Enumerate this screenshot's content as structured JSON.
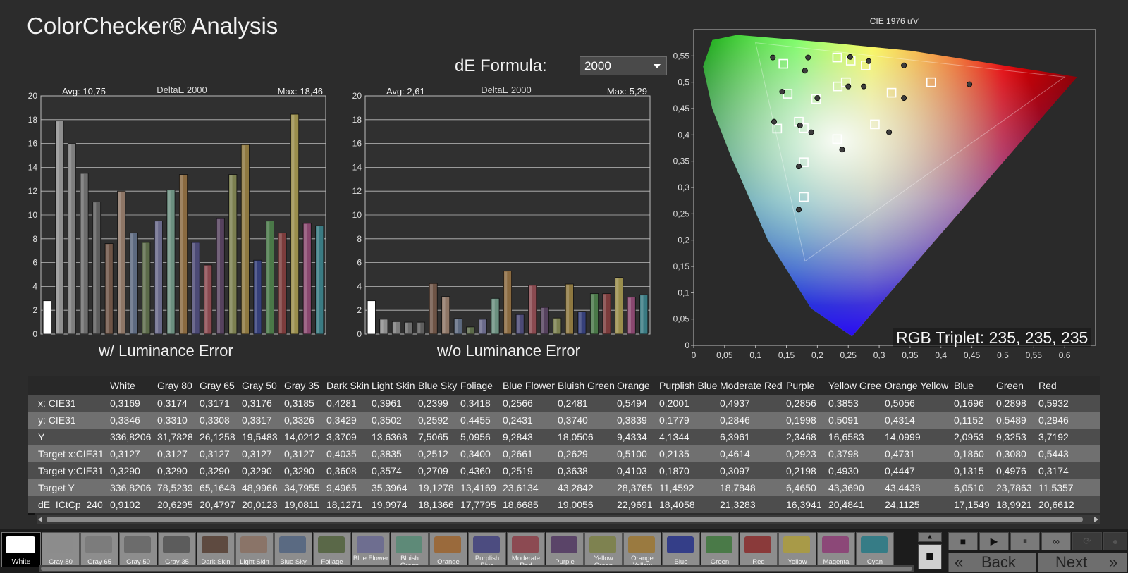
{
  "page": {
    "title": "ColorChecker® Analysis",
    "de_formula_label": "dE Formula:",
    "de_formula_value": "2000",
    "rgb_triplet": "RGB Triplet: 235, 235, 235"
  },
  "chart_data": [
    {
      "type": "bar",
      "caption": "w/ Luminance Error",
      "series_title": "DeltaE 2000",
      "avg_label": "Avg: 10,75",
      "max_label": "Max: 18,46",
      "ylim": [
        0,
        20
      ],
      "yticks": [
        "0",
        "2",
        "4",
        "6",
        "8",
        "10",
        "12",
        "14",
        "16",
        "18",
        "20"
      ],
      "categories": [
        "White",
        "Gray 80",
        "Gray 65",
        "Gray 50",
        "Gray 35",
        "Dark Skin",
        "Light Skin",
        "Blue Sky",
        "Foliage",
        "Blue Flower",
        "Bluish Green",
        "Orange",
        "Purplish Blue",
        "Moderate Red",
        "Purple",
        "Yellow Green",
        "Orange Yellow",
        "Blue",
        "Green",
        "Red",
        "Yellow",
        "Magenta",
        "Cyan"
      ],
      "values": [
        2.8,
        17.9,
        16.0,
        13.5,
        11.1,
        7.6,
        12.0,
        8.5,
        7.7,
        9.5,
        12.1,
        13.4,
        7.7,
        5.8,
        9.7,
        13.4,
        15.9,
        6.2,
        9.5,
        8.5,
        18.46,
        9.3,
        9.1
      ],
      "colors": [
        "#ffffff",
        "#8f8f8f",
        "#7e7e7e",
        "#6e6e6e",
        "#5e5e5e",
        "#6e5446",
        "#8e7666",
        "#5d6a80",
        "#5c6b4a",
        "#6a6a8a",
        "#6c9080",
        "#8a6a40",
        "#4c4a76",
        "#8a4a50",
        "#56425e",
        "#7c8050",
        "#8e7840",
        "#36407a",
        "#4a7848",
        "#7c3c3c",
        "#9a8e4c",
        "#8a4870",
        "#3a7a82"
      ]
    },
    {
      "type": "bar",
      "caption": "w/o Luminance Error",
      "series_title": "DeltaE 2000",
      "avg_label": "Avg: 2,61",
      "max_label": "Max: 5,29",
      "ylim": [
        0,
        20
      ],
      "yticks": [
        "0",
        "2",
        "4",
        "6",
        "8",
        "10",
        "12",
        "14",
        "16",
        "18",
        "20"
      ],
      "categories": [
        "White",
        "Gray 80",
        "Gray 65",
        "Gray 50",
        "Gray 35",
        "Dark Skin",
        "Light Skin",
        "Blue Sky",
        "Foliage",
        "Blue Flower",
        "Bluish Green",
        "Orange",
        "Purplish Blue",
        "Moderate Red",
        "Purple",
        "Yellow Green",
        "Orange Yellow",
        "Blue",
        "Green",
        "Red",
        "Yellow",
        "Magenta",
        "Cyan"
      ],
      "values": [
        2.8,
        1.25,
        1.05,
        1.0,
        1.0,
        4.25,
        3.15,
        1.3,
        0.6,
        1.25,
        3.0,
        5.29,
        1.65,
        4.1,
        2.25,
        1.35,
        4.2,
        1.9,
        3.4,
        3.4,
        4.75,
        3.1,
        3.3
      ],
      "colors": [
        "#ffffff",
        "#8f8f8f",
        "#7e7e7e",
        "#6e6e6e",
        "#5e5e5e",
        "#6e5446",
        "#8e7666",
        "#5d6a80",
        "#5c6b4a",
        "#6a6a8a",
        "#6c9080",
        "#8a6a40",
        "#4c4a76",
        "#8a4a50",
        "#56425e",
        "#7c8050",
        "#8e7840",
        "#36407a",
        "#4a7848",
        "#7c3c3c",
        "#9a8e4c",
        "#8a4870",
        "#3a7a82"
      ]
    },
    {
      "type": "scatter",
      "title": "CIE 1976 u'v'",
      "xlim": [
        0,
        0.65
      ],
      "ylim": [
        0,
        0.6
      ],
      "xticks": [
        "0",
        "0,05",
        "0,1",
        "0,15",
        "0,2",
        "0,25",
        "0,3",
        "0,35",
        "0,4",
        "0,45",
        "0,5",
        "0,55",
        "0,6"
      ],
      "yticks": [
        "0",
        "0,05",
        "0,1",
        "0,15",
        "0,2",
        "0,25",
        "0,3",
        "0,35",
        "0,4",
        "0,45",
        "0,5",
        "0,55"
      ],
      "targets": [
        [
          0.198,
          0.468
        ],
        [
          0.145,
          0.535
        ],
        [
          0.17,
          0.425
        ],
        [
          0.178,
          0.413
        ],
        [
          0.135,
          0.412
        ],
        [
          0.152,
          0.478
        ],
        [
          0.178,
          0.348
        ],
        [
          0.178,
          0.282
        ],
        [
          0.232,
          0.547
        ],
        [
          0.254,
          0.541
        ],
        [
          0.278,
          0.532
        ],
        [
          0.246,
          0.5
        ],
        [
          0.233,
          0.492
        ],
        [
          0.293,
          0.42
        ],
        [
          0.32,
          0.48
        ],
        [
          0.384,
          0.5
        ],
        [
          0.232,
          0.392
        ]
      ],
      "measured": [
        [
          0.128,
          0.547
        ],
        [
          0.185,
          0.547
        ],
        [
          0.18,
          0.522
        ],
        [
          0.143,
          0.482
        ],
        [
          0.13,
          0.425
        ],
        [
          0.172,
          0.418
        ],
        [
          0.19,
          0.405
        ],
        [
          0.24,
          0.372
        ],
        [
          0.17,
          0.34
        ],
        [
          0.17,
          0.258
        ],
        [
          0.253,
          0.548
        ],
        [
          0.283,
          0.54
        ],
        [
          0.34,
          0.532
        ],
        [
          0.25,
          0.492
        ],
        [
          0.275,
          0.492
        ],
        [
          0.34,
          0.47
        ],
        [
          0.316,
          0.405
        ],
        [
          0.446,
          0.496
        ],
        [
          0.2,
          0.47
        ]
      ]
    }
  ],
  "table": {
    "columns": [
      "",
      "White",
      "Gray 80",
      "Gray 65",
      "Gray 50",
      "Gray 35",
      "Dark Skin",
      "Light Skin",
      "Blue Sky",
      "Foliage",
      "Blue Flower",
      "Bluish Green",
      "Orange",
      "Purplish Blue",
      "Moderate Red",
      "Purple",
      "Yellow Green",
      "Orange Yellow",
      "Blue",
      "Green",
      "Red"
    ],
    "rows": [
      [
        "x: CIE31",
        "0,3169",
        "0,3174",
        "0,3171",
        "0,3176",
        "0,3185",
        "0,4281",
        "0,3961",
        "0,2399",
        "0,3418",
        "0,2566",
        "0,2481",
        "0,5494",
        "0,2001",
        "0,4937",
        "0,2856",
        "0,3853",
        "0,5056",
        "0,1696",
        "0,2898",
        "0,5932"
      ],
      [
        "y: CIE31",
        "0,3346",
        "0,3310",
        "0,3308",
        "0,3317",
        "0,3326",
        "0,3429",
        "0,3502",
        "0,2592",
        "0,4455",
        "0,2431",
        "0,3740",
        "0,3839",
        "0,1779",
        "0,2846",
        "0,1998",
        "0,5091",
        "0,4314",
        "0,1152",
        "0,5489",
        "0,2946"
      ],
      [
        "Y",
        "336,8206",
        "31,7828",
        "26,1258",
        "19,5483",
        "14,0212",
        "3,3709",
        "13,6368",
        "7,5065",
        "5,0956",
        "9,2843",
        "18,0506",
        "9,4334",
        "4,1344",
        "6,3961",
        "2,3468",
        "16,6583",
        "14,0999",
        "2,0953",
        "9,3253",
        "3,7192"
      ],
      [
        "Target x:CIE31",
        "0,3127",
        "0,3127",
        "0,3127",
        "0,3127",
        "0,3127",
        "0,4035",
        "0,3835",
        "0,2512",
        "0,3400",
        "0,2661",
        "0,2629",
        "0,5100",
        "0,2135",
        "0,4614",
        "0,2923",
        "0,3798",
        "0,4731",
        "0,1860",
        "0,3080",
        "0,5443"
      ],
      [
        "Target y:CIE31",
        "0,3290",
        "0,3290",
        "0,3290",
        "0,3290",
        "0,3290",
        "0,3608",
        "0,3574",
        "0,2709",
        "0,4360",
        "0,2519",
        "0,3638",
        "0,4103",
        "0,1870",
        "0,3097",
        "0,2198",
        "0,4930",
        "0,4447",
        "0,1315",
        "0,4976",
        "0,3174"
      ],
      [
        "Target Y",
        "336,8206",
        "78,5239",
        "65,1648",
        "48,9966",
        "34,7955",
        "9,4965",
        "35,3964",
        "19,1278",
        "13,4169",
        "23,6134",
        "43,2842",
        "28,3765",
        "11,4592",
        "18,7848",
        "6,4650",
        "43,3690",
        "43,4438",
        "6,0510",
        "23,7863",
        "11,5357"
      ],
      [
        "dE_ICtCp_240",
        "0,9102",
        "20,6295",
        "20,4797",
        "20,0123",
        "19,0811",
        "18,1271",
        "19,9974",
        "18,1366",
        "17,7795",
        "18,6685",
        "19,0056",
        "22,9691",
        "18,4058",
        "21,3283",
        "16,3941",
        "20,4841",
        "24,1125",
        "17,1549",
        "18,9921",
        "20,6612"
      ]
    ]
  },
  "swatches": [
    {
      "label": "White",
      "color": "#ffffff"
    },
    {
      "label": "Gray 80",
      "color": "#8c8c8c"
    },
    {
      "label": "Gray 65",
      "color": "#7c7c7c"
    },
    {
      "label": "Gray 50",
      "color": "#6c6c6c"
    },
    {
      "label": "Gray 35",
      "color": "#5c5c5c"
    },
    {
      "label": "Dark Skin",
      "color": "#5e4a40"
    },
    {
      "label": "Light Skin",
      "color": "#8a7468"
    },
    {
      "label": "Blue Sky",
      "color": "#5a6a82"
    },
    {
      "label": "Foliage",
      "color": "#5a6848"
    },
    {
      "label": "Blue Flower",
      "color": "#6e6e90"
    },
    {
      "label": "Bluish Green",
      "color": "#5e8a78"
    },
    {
      "label": "Orange",
      "color": "#9a6a3c"
    },
    {
      "label": "Purplish Blue",
      "color": "#4c4c80"
    },
    {
      "label": "Moderate Red",
      "color": "#8c4a52"
    },
    {
      "label": "Purple",
      "color": "#5a4468"
    },
    {
      "label": "Yellow Green",
      "color": "#7e8250"
    },
    {
      "label": "Orange Yellow",
      "color": "#9a7a40"
    },
    {
      "label": "Blue",
      "color": "#343e88"
    },
    {
      "label": "Green",
      "color": "#4a7a48"
    },
    {
      "label": "Red",
      "color": "#8a3a3a"
    },
    {
      "label": "Yellow",
      "color": "#a89a48"
    },
    {
      "label": "Magenta",
      "color": "#8c4878"
    },
    {
      "label": "Cyan",
      "color": "#367c86"
    }
  ],
  "nav": {
    "back_label": "Back",
    "next_label": "Next"
  }
}
